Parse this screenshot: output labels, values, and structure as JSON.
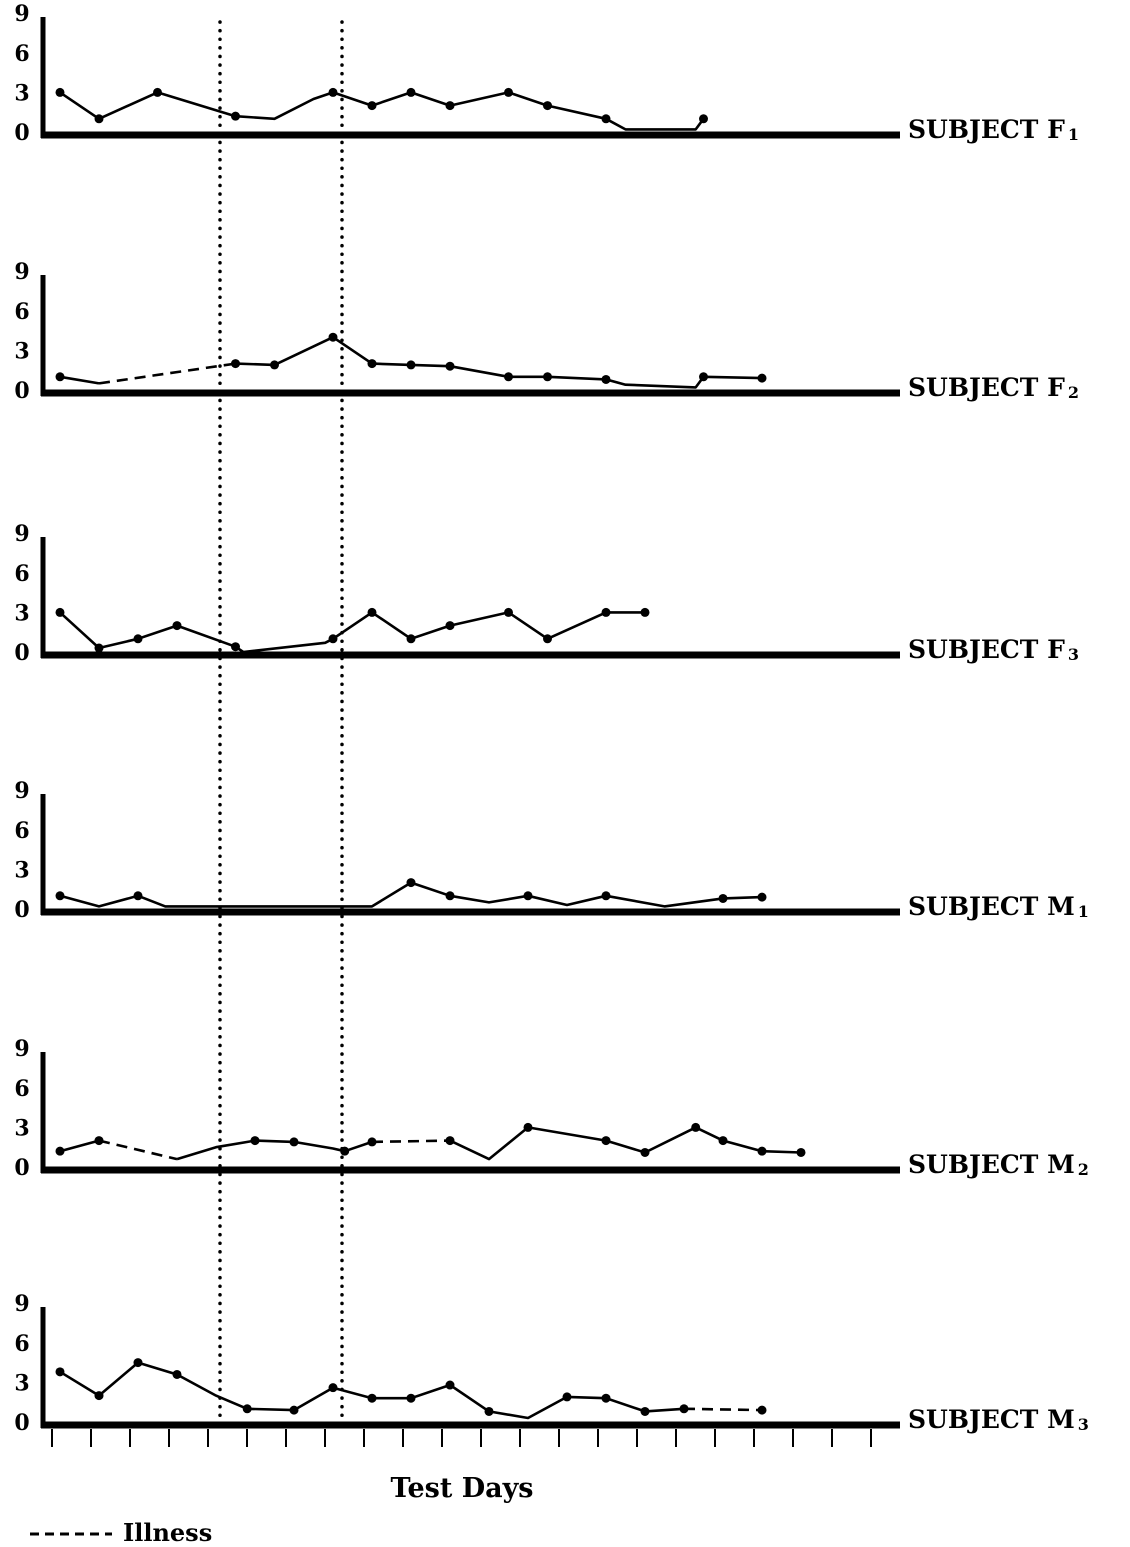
{
  "chart_data": {
    "type": "line",
    "xlabel": "Test Days",
    "y_ticks": [
      "0",
      "3",
      "6",
      "9"
    ],
    "ylim": [
      0,
      9
    ],
    "x_days": 22,
    "reference_lines": {
      "style": "dotted",
      "after_day": [
        4.7,
        7.7
      ]
    },
    "legend": {
      "line_style": "dashed",
      "label": "Illness"
    },
    "panels": [
      {
        "label_main": "SUBJECT F",
        "label_sub": "1",
        "segments": [
          {
            "style": "solid",
            "points": [
              [
                1,
                3.0
              ],
              [
                2,
                1.0
              ],
              [
                3.5,
                3.0
              ],
              [
                5.5,
                1.2
              ],
              [
                6.5,
                1.0
              ],
              [
                7.5,
                2.5
              ],
              [
                8,
                3.0
              ],
              [
                9,
                2.0
              ],
              [
                10,
                3.0
              ],
              [
                11,
                2.0
              ],
              [
                12.5,
                3.0
              ],
              [
                13.5,
                2.0
              ],
              [
                15,
                1.0
              ],
              [
                15.5,
                0.2
              ],
              [
                17.3,
                0.2
              ],
              [
                17.5,
                1.0
              ]
            ]
          }
        ],
        "markers": [
          [
            1,
            3.0
          ],
          [
            2,
            1.0
          ],
          [
            3.5,
            3.0
          ],
          [
            5.5,
            1.2
          ],
          [
            8,
            3.0
          ],
          [
            9,
            2.0
          ],
          [
            10,
            3.0
          ],
          [
            11,
            2.0
          ],
          [
            12.5,
            3.0
          ],
          [
            13.5,
            2.0
          ],
          [
            15,
            1.0
          ],
          [
            17.5,
            1.0
          ]
        ]
      },
      {
        "label_main": "SUBJECT F",
        "label_sub": "2",
        "segments": [
          {
            "style": "solid",
            "points": [
              [
                1,
                1.0
              ],
              [
                2,
                0.5
              ]
            ]
          },
          {
            "style": "dashed",
            "points": [
              [
                2,
                0.5
              ],
              [
                5.5,
                2.0
              ]
            ]
          },
          {
            "style": "solid",
            "points": [
              [
                5.5,
                2.0
              ],
              [
                6.5,
                1.9
              ],
              [
                8,
                4.0
              ],
              [
                9,
                2.0
              ],
              [
                10,
                1.9
              ],
              [
                11,
                1.8
              ],
              [
                12.5,
                1.0
              ],
              [
                13.5,
                1.0
              ],
              [
                15,
                0.8
              ],
              [
                15.5,
                0.4
              ],
              [
                17.3,
                0.2
              ],
              [
                17.5,
                1.0
              ],
              [
                19,
                0.9
              ]
            ]
          }
        ],
        "markers": [
          [
            1,
            1.0
          ],
          [
            5.5,
            2.0
          ],
          [
            6.5,
            1.9
          ],
          [
            8,
            4.0
          ],
          [
            9,
            2.0
          ],
          [
            10,
            1.9
          ],
          [
            11,
            1.8
          ],
          [
            12.5,
            1.0
          ],
          [
            13.5,
            1.0
          ],
          [
            15,
            0.8
          ],
          [
            17.5,
            1.0
          ],
          [
            19,
            0.9
          ]
        ]
      },
      {
        "label_main": "SUBJECT F",
        "label_sub": "3",
        "segments": [
          {
            "style": "solid",
            "points": [
              [
                1,
                3.0
              ],
              [
                2,
                0.3
              ],
              [
                3,
                1.0
              ],
              [
                4,
                2.0
              ],
              [
                5.5,
                0.4
              ],
              [
                5.7,
                0.0
              ],
              [
                7.8,
                0.7
              ],
              [
                8,
                1.0
              ],
              [
                9,
                3.0
              ],
              [
                10,
                1.0
              ],
              [
                11,
                2.0
              ],
              [
                12.5,
                3.0
              ],
              [
                13.5,
                1.0
              ],
              [
                15,
                3.0
              ],
              [
                16,
                3.0
              ]
            ]
          }
        ],
        "markers": [
          [
            1,
            3.0
          ],
          [
            2,
            0.3
          ],
          [
            3,
            1.0
          ],
          [
            4,
            2.0
          ],
          [
            5.5,
            0.4
          ],
          [
            8,
            1.0
          ],
          [
            9,
            3.0
          ],
          [
            10,
            1.0
          ],
          [
            11,
            2.0
          ],
          [
            12.5,
            3.0
          ],
          [
            13.5,
            1.0
          ],
          [
            15,
            3.0
          ],
          [
            16,
            3.0
          ]
        ]
      },
      {
        "label_main": "SUBJECT M",
        "label_sub": "1",
        "segments": [
          {
            "style": "solid",
            "points": [
              [
                1,
                1.0
              ],
              [
                2,
                0.2
              ],
              [
                3,
                1.0
              ],
              [
                3.7,
                0.2
              ],
              [
                9,
                0.2
              ],
              [
                10,
                2.0
              ],
              [
                11,
                1.0
              ],
              [
                12,
                0.5
              ],
              [
                13,
                1.0
              ],
              [
                14,
                0.3
              ],
              [
                15,
                1.0
              ],
              [
                16.5,
                0.2
              ],
              [
                18,
                0.8
              ],
              [
                19,
                0.9
              ]
            ]
          }
        ],
        "markers": [
          [
            1,
            1.0
          ],
          [
            3,
            1.0
          ],
          [
            10,
            2.0
          ],
          [
            11,
            1.0
          ],
          [
            13,
            1.0
          ],
          [
            15,
            1.0
          ],
          [
            18,
            0.8
          ],
          [
            19,
            0.9
          ]
        ]
      },
      {
        "label_main": "SUBJECT M",
        "label_sub": "2",
        "segments": [
          {
            "style": "solid",
            "points": [
              [
                1,
                1.2
              ],
              [
                2,
                2.0
              ]
            ]
          },
          {
            "style": "dashed",
            "points": [
              [
                2,
                2.0
              ],
              [
                4,
                0.6
              ]
            ]
          },
          {
            "style": "solid",
            "points": [
              [
                4,
                0.6
              ],
              [
                5,
                1.5
              ],
              [
                6,
                2.0
              ],
              [
                7,
                1.9
              ],
              [
                8,
                1.4
              ],
              [
                8.3,
                1.2
              ],
              [
                9,
                1.9
              ]
            ]
          },
          {
            "style": "dashed",
            "points": [
              [
                9,
                1.9
              ],
              [
                11,
                2.0
              ]
            ]
          },
          {
            "style": "solid",
            "points": [
              [
                11,
                2.0
              ],
              [
                12,
                0.6
              ],
              [
                13,
                3.0
              ],
              [
                15,
                2.0
              ],
              [
                16,
                1.1
              ],
              [
                17.3,
                3.0
              ],
              [
                18,
                2.0
              ],
              [
                19,
                1.2
              ],
              [
                20,
                1.1
              ]
            ]
          }
        ],
        "markers": [
          [
            1,
            1.2
          ],
          [
            2,
            2.0
          ],
          [
            6,
            2.0
          ],
          [
            7,
            1.9
          ],
          [
            8.3,
            1.2
          ],
          [
            9,
            1.9
          ],
          [
            11,
            2.0
          ],
          [
            13,
            3.0
          ],
          [
            15,
            2.0
          ],
          [
            16,
            1.1
          ],
          [
            17.3,
            3.0
          ],
          [
            18,
            2.0
          ],
          [
            19,
            1.2
          ],
          [
            20,
            1.1
          ]
        ]
      },
      {
        "label_main": "SUBJECT M",
        "label_sub": "3",
        "segments": [
          {
            "style": "solid",
            "points": [
              [
                1,
                3.8
              ],
              [
                2,
                2.0
              ],
              [
                3,
                4.5
              ],
              [
                4,
                3.6
              ],
              [
                5,
                2.0
              ],
              [
                5.8,
                1.0
              ],
              [
                7,
                0.9
              ],
              [
                8,
                2.6
              ],
              [
                9,
                1.8
              ],
              [
                10,
                1.8
              ],
              [
                11,
                2.8
              ],
              [
                12,
                0.8
              ],
              [
                13,
                0.3
              ],
              [
                14,
                1.9
              ],
              [
                15,
                1.8
              ],
              [
                16,
                0.8
              ],
              [
                17,
                1.0
              ]
            ]
          },
          {
            "style": "dashed",
            "points": [
              [
                17,
                1.0
              ],
              [
                19,
                0.9
              ]
            ]
          }
        ],
        "markers": [
          [
            1,
            3.8
          ],
          [
            2,
            2.0
          ],
          [
            3,
            4.5
          ],
          [
            4,
            3.6
          ],
          [
            5.8,
            1.0
          ],
          [
            7,
            0.9
          ],
          [
            8,
            2.6
          ],
          [
            9,
            1.8
          ],
          [
            10,
            1.8
          ],
          [
            11,
            2.8
          ],
          [
            12,
            0.8
          ],
          [
            14,
            1.9
          ],
          [
            15,
            1.8
          ],
          [
            16,
            0.8
          ],
          [
            17,
            1.0
          ],
          [
            19,
            0.9
          ]
        ]
      }
    ]
  }
}
